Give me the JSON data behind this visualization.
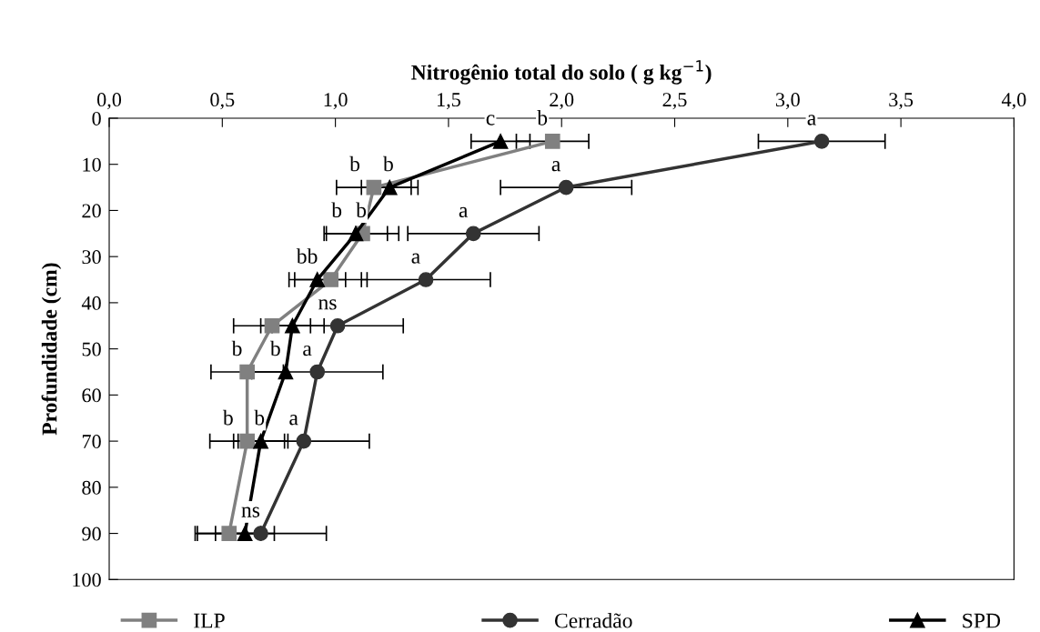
{
  "chart_data": {
    "type": "line",
    "xlabel": "Nitrogênio total do solo ( g kg$^{−1}$)",
    "ylabel": "Profundidade (cm)",
    "xlim": [
      0,
      4
    ],
    "xticks": [
      {
        "value": 0,
        "label": "0,0"
      },
      {
        "value": 0.5,
        "label": "0,5"
      },
      {
        "value": 1,
        "label": "1,0"
      },
      {
        "value": 1.5,
        "label": "1,5"
      },
      {
        "value": 2,
        "label": "2,0"
      },
      {
        "value": 2.5,
        "label": "2,5"
      },
      {
        "value": 3,
        "label": "3,0"
      },
      {
        "value": 3.5,
        "label": "3,5"
      },
      {
        "value": 4,
        "label": "4,0"
      }
    ],
    "ylim": [
      100,
      0
    ],
    "yticks": [
      0,
      10,
      20,
      30,
      40,
      50,
      60,
      70,
      80,
      90,
      100
    ],
    "grid": false,
    "legend": "bottom",
    "series": [
      {
        "name": "ILP",
        "color": "#808080",
        "marker": "square",
        "x": [
          1.96,
          1.17,
          1.12,
          0.98,
          0.72,
          0.61,
          0.61,
          0.53
        ],
        "values": [
          5,
          15,
          25,
          35,
          45,
          55,
          70,
          90
        ],
        "xerrors": [
          0.16,
          0.165,
          0.16,
          0.16,
          0.17,
          0.16,
          0.165,
          0.14
        ]
      },
      {
        "name": "Cerradão",
        "color": "#333333",
        "marker": "circle",
        "x": [
          3.15,
          2.02,
          1.61,
          1.4,
          1.01,
          0.92,
          0.86,
          0.67
        ],
        "values": [
          5,
          15,
          25,
          35,
          45,
          55,
          70,
          90
        ],
        "xerrors": [
          0.28,
          0.29,
          0.29,
          0.285,
          0.29,
          0.29,
          0.29,
          0.29
        ]
      },
      {
        "name": "SPD",
        "color": "#000000",
        "marker": "triangle",
        "x": [
          1.73,
          1.24,
          1.09,
          0.92,
          0.81,
          0.78,
          0.67,
          0.6
        ],
        "values": [
          5,
          15,
          25,
          35,
          45,
          55,
          70,
          90
        ],
        "xerrors": [
          0.13,
          0.125,
          0.14,
          0.125,
          0.14,
          null,
          0.12,
          0.13
        ]
      }
    ],
    "annotations": [
      {
        "text": "c",
        "x": 1.73,
        "y": 5
      },
      {
        "text": "b",
        "x": 1.96,
        "y": 5
      },
      {
        "text": "a",
        "x": 3.15,
        "y": 5
      },
      {
        "text": "b",
        "x": 1.17,
        "y": 15
      },
      {
        "text": "b",
        "x": 1.24,
        "y": 15
      },
      {
        "text": "a",
        "x": 2.02,
        "y": 15
      },
      {
        "text": "b",
        "x": 1.09,
        "y": 25
      },
      {
        "text": "b",
        "x": 1.12,
        "y": 25
      },
      {
        "text": "a",
        "x": 1.61,
        "y": 25
      },
      {
        "text": "bb",
        "x": 0.92,
        "y": 35
      },
      {
        "text": "a",
        "x": 1.4,
        "y": 35
      },
      {
        "text": "ns",
        "x": 1.01,
        "y": 45
      },
      {
        "text": "b",
        "x": 0.61,
        "y": 55
      },
      {
        "text": "b",
        "x": 0.78,
        "y": 55
      },
      {
        "text": "a",
        "x": 0.92,
        "y": 55
      },
      {
        "text": "b",
        "x": 0.61,
        "y": 70
      },
      {
        "text": "b",
        "x": 0.67,
        "y": 70
      },
      {
        "text": "a",
        "x": 0.86,
        "y": 70
      },
      {
        "text": "ns",
        "x": 0.67,
        "y": 90
      }
    ]
  }
}
